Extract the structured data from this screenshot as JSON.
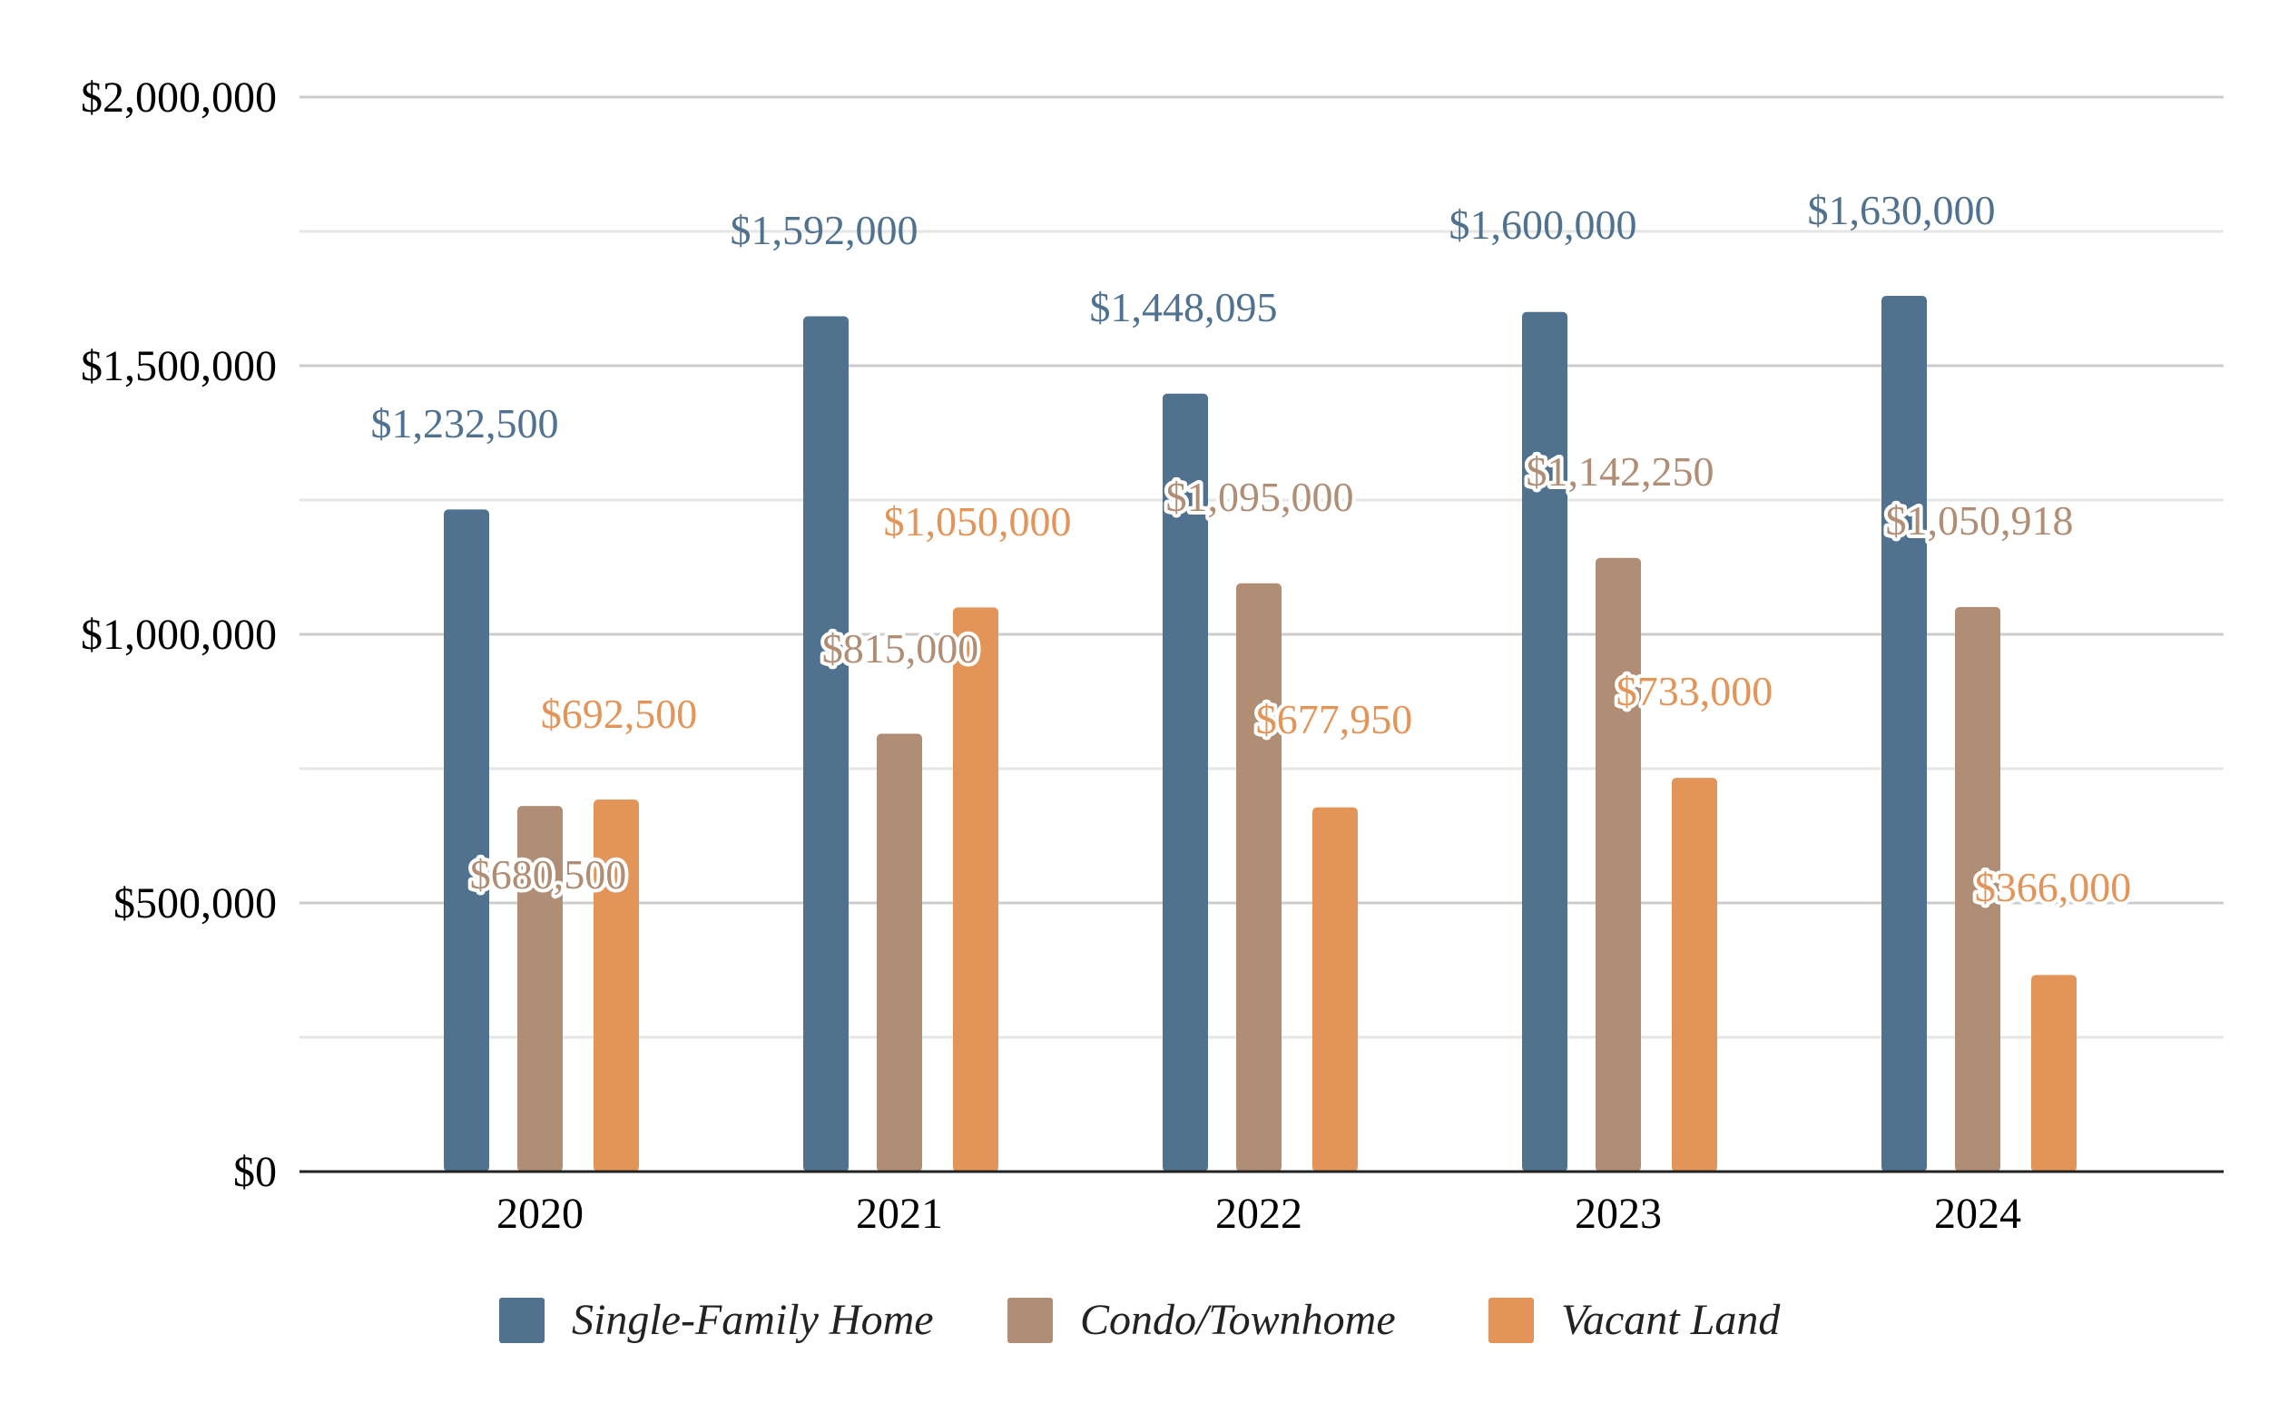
{
  "chart_data": {
    "type": "bar",
    "categories": [
      "2020",
      "2021",
      "2022",
      "2023",
      "2024"
    ],
    "series": [
      {
        "name": "Single-Family Home",
        "color": "#50728f",
        "values": [
          1232500,
          1592000,
          1448095,
          1600000,
          1630000
        ],
        "labels": [
          "$1,232,500",
          "$1,592,000",
          "$1,448,095",
          "$1,600,000",
          "$1,630,000"
        ]
      },
      {
        "name": "Condo/Townhome",
        "color": "#b08d75",
        "values": [
          680500,
          815000,
          1095000,
          1142250,
          1050918
        ],
        "labels": [
          "$680,500",
          "$815,000",
          "$1,095,000",
          "$1,142,250",
          "$1,050,918"
        ]
      },
      {
        "name": "Vacant Land",
        "color": "#e39458",
        "values": [
          692500,
          1050000,
          677950,
          733000,
          366000
        ],
        "labels": [
          "$692,500",
          "$1,050,000",
          "$677,950",
          "$733,000",
          "$366,000"
        ]
      }
    ],
    "y_ticks": [
      {
        "value": 0,
        "label": "$0"
      },
      {
        "value": 500000,
        "label": "$500,000"
      },
      {
        "value": 1000000,
        "label": "$1,000,000"
      },
      {
        "value": 1500000,
        "label": "$1,500,000"
      },
      {
        "value": 2000000,
        "label": "$2,000,000"
      }
    ],
    "ylim": [
      0,
      2000000
    ],
    "minor_gridlines": true,
    "legend_position": "bottom-center",
    "title": "",
    "xlabel": "",
    "ylabel": ""
  }
}
